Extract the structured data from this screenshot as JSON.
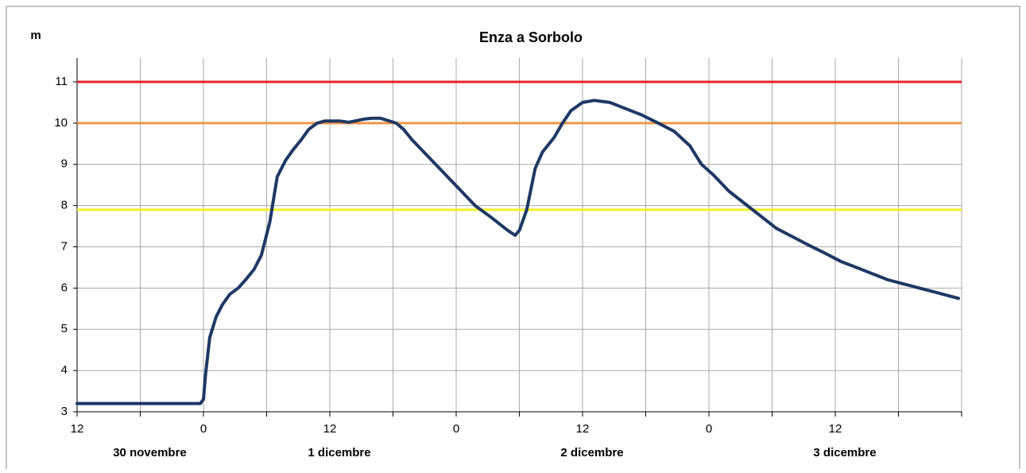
{
  "chart_data": {
    "type": "line",
    "title": "Enza a Sorbolo",
    "y_label": "m",
    "x": [
      0,
      11.7,
      12,
      12.2,
      12.6,
      13.2,
      13.8,
      14.5,
      15.3,
      16,
      16.8,
      17.5,
      18.3,
      19,
      19.8,
      20.5,
      21.3,
      22,
      22.8,
      23.5,
      25,
      25.8,
      27.3,
      28,
      28.8,
      30.3,
      31,
      31.8,
      33.3,
      34.8,
      36.3,
      37.8,
      39.4,
      40.9,
      41.6,
      42,
      42.7,
      43.5,
      44.2,
      45.3,
      46.1,
      46.9,
      48,
      49.1,
      50.6,
      52.1,
      53.6,
      55.2,
      56.7,
      58.2,
      59.3,
      60.4,
      61.9,
      63.4,
      64.9,
      66.4,
      67.9,
      69.4,
      71,
      72.5,
      74,
      75.5,
      77,
      78.5,
      80,
      81.5,
      83.7
    ],
    "series": [
      {
        "color": "#1f3864",
        "values": [
          3.2,
          3.2,
          3.3,
          3.9,
          4.8,
          5.3,
          5.6,
          5.85,
          6.0,
          6.2,
          6.45,
          6.8,
          7.6,
          8.7,
          9.1,
          9.35,
          9.6,
          9.85,
          10.0,
          10.05,
          10.05,
          10.02,
          10.1,
          10.12,
          10.12,
          10.0,
          9.85,
          9.6,
          9.2,
          8.8,
          8.4,
          8.0,
          7.7,
          7.4,
          7.28,
          7.4,
          7.9,
          8.9,
          9.3,
          9.65,
          10.0,
          10.3,
          10.5,
          10.55,
          10.5,
          10.35,
          10.2,
          10.0,
          9.8,
          9.45,
          9.0,
          8.75,
          8.35,
          8.05,
          7.75,
          7.45,
          7.25,
          7.05,
          6.85,
          6.65,
          6.5,
          6.35,
          6.2,
          6.1,
          6.0,
          5.9,
          5.75
        ]
      }
    ],
    "thresholds": [
      {
        "value": 11,
        "color": "#e8202a"
      },
      {
        "value": 10,
        "color": "#f0964a"
      },
      {
        "value": 7.9,
        "color": "#f5f02a"
      }
    ],
    "xlim": [
      0,
      84
    ],
    "xticks": [
      {
        "value": 0,
        "label": "12"
      },
      {
        "value": 12,
        "label": "0"
      },
      {
        "value": 24,
        "label": "12"
      },
      {
        "value": 36,
        "label": "0"
      },
      {
        "value": 48,
        "label": "12"
      },
      {
        "value": 60,
        "label": "0"
      },
      {
        "value": 72,
        "label": "12"
      }
    ],
    "xminor": [
      6,
      18,
      30,
      42,
      54,
      66,
      78,
      84
    ],
    "day_labels": [
      "30 novembre",
      "1 dicembre",
      "2 dicembre",
      "3 dicembre"
    ],
    "ylim": [
      3,
      11
    ],
    "yticks": [
      3,
      4,
      5,
      6,
      7,
      8,
      9,
      10,
      11
    ],
    "grid": true
  }
}
